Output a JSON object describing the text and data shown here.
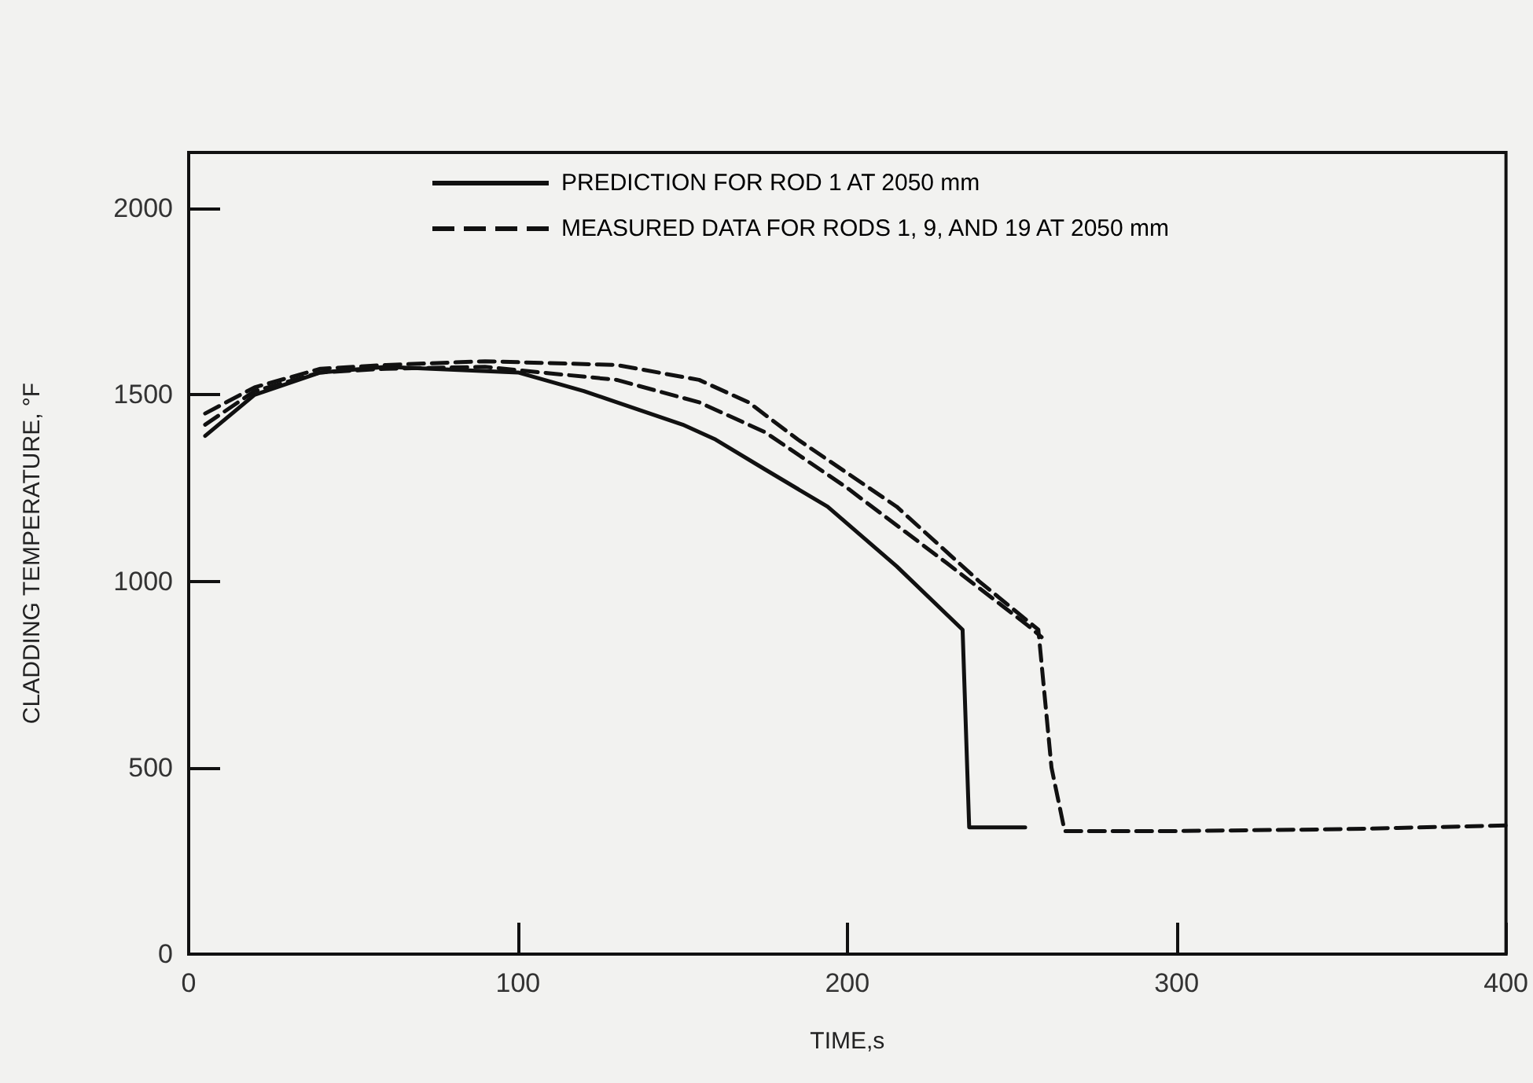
{
  "chart_data": {
    "type": "line",
    "xlabel": "TIME,s",
    "ylabel": "CLADDING TEMPERATURE, °F",
    "xlim": [
      0,
      400
    ],
    "xticks": [
      0,
      100,
      200,
      300,
      400
    ],
    "ylim": [
      0,
      2150
    ],
    "yticks": [
      0,
      500,
      1000,
      1500,
      2000
    ],
    "grid": false,
    "legend": "top",
    "marker": "none",
    "series": [
      {
        "name": "PREDICTION FOR ROD 1 AT 2050 mm",
        "color": "#111111",
        "line_style": "solid",
        "x": [
          5,
          20,
          40,
          60,
          100,
          120,
          140,
          150,
          160,
          175,
          194,
          215,
          235,
          237,
          254
        ],
        "values": [
          1390,
          1500,
          1560,
          1575,
          1560,
          1510,
          1450,
          1420,
          1380,
          1300,
          1200,
          1040,
          870,
          340,
          340
        ]
      },
      {
        "name": "MEASURED DATA FOR RODS 1, 9, AND 19 AT 2050 mm",
        "color": "#111111",
        "line_style": "dashed",
        "x": [
          5,
          20,
          40,
          60,
          90,
          130,
          155,
          170,
          185,
          215,
          240,
          258,
          262,
          266,
          300,
          350,
          400
        ],
        "values": [
          1450,
          1520,
          1570,
          1580,
          1590,
          1580,
          1540,
          1480,
          1380,
          1200,
          1000,
          870,
          500,
          330,
          330,
          335,
          345
        ]
      },
      {
        "color": "#111111",
        "line_style": "dashed",
        "x": [
          5,
          20,
          40,
          60,
          90,
          130,
          155,
          175,
          200,
          230,
          255,
          259
        ],
        "values": [
          1420,
          1510,
          1560,
          1570,
          1575,
          1540,
          1480,
          1400,
          1250,
          1050,
          880,
          850
        ]
      }
    ]
  }
}
